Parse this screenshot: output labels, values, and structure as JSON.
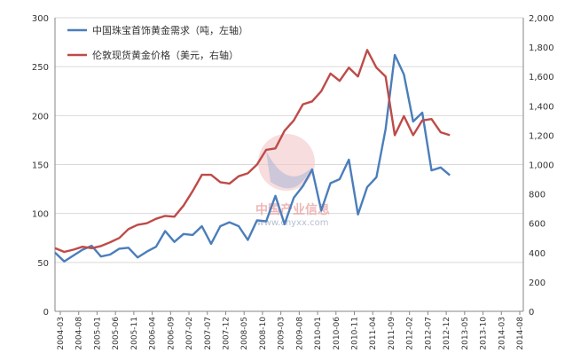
{
  "watermark": {
    "name": "中国产业信息",
    "url": "www.chyxx.com"
  },
  "chart_data": {
    "type": "line",
    "title": "",
    "legend_position": "top-left",
    "grid": true,
    "x": [
      "2004-03",
      "2004-06",
      "2004-08",
      "2004-12",
      "2005-01",
      "2005-03",
      "2005-06",
      "2005-09",
      "2005-11",
      "2006-01",
      "2006-04",
      "2006-06",
      "2006-09",
      "2006-12",
      "2007-02",
      "2007-05",
      "2007-07",
      "2007-10",
      "2007-12",
      "2008-02",
      "2008-05",
      "2008-07",
      "2008-10",
      "2008-12",
      "2009-03",
      "2009-05",
      "2009-08",
      "2009-10",
      "2010-01",
      "2010-03",
      "2010-06",
      "2010-08",
      "2010-11",
      "2011-01",
      "2011-04",
      "2011-06",
      "2011-09",
      "2011-11",
      "2012-02",
      "2012-04",
      "2012-07",
      "2012-09",
      "2012-12",
      "2013-02",
      "2013-05",
      "2013-07",
      "2013-10",
      "2013-12",
      "2014-03",
      "2014-05",
      "2014-08",
      "2014-10"
    ],
    "xticks": [
      "2004-03",
      "2004-08",
      "2005-01",
      "2005-06",
      "2005-11",
      "2006-04",
      "2006-09",
      "2007-02",
      "2007-07",
      "2007-12",
      "2008-05",
      "2008-10",
      "2009-03",
      "2009-08",
      "2010-01",
      "2010-06",
      "2010-11",
      "2011-04",
      "2011-09",
      "2012-02",
      "2012-07",
      "2012-12",
      "2013-05",
      "2013-10",
      "2014-03",
      "2014-08"
    ],
    "left_axis": {
      "ylim": [
        0,
        300
      ],
      "ticks": [
        "0",
        "50",
        "100",
        "150",
        "200",
        "250",
        "300"
      ]
    },
    "right_axis": {
      "ylim": [
        0,
        2000
      ],
      "ticks": [
        "0",
        "200",
        "400",
        "600",
        "800",
        "1,000",
        "1,200",
        "1,400",
        "1,600",
        "1,800",
        "2,000"
      ]
    },
    "series": [
      {
        "name": "中国珠宝首饰黄金需求（吨，左轴）",
        "axis": "left",
        "color": "#4a7ebb",
        "values": [
          60,
          51,
          57,
          63,
          67,
          56,
          58,
          64,
          65,
          55,
          61,
          66,
          82,
          71,
          79,
          78,
          87,
          69,
          87,
          91,
          87,
          73,
          93,
          92,
          118,
          89,
          116,
          128,
          145,
          103,
          131,
          135,
          155,
          99,
          127,
          137,
          186,
          262,
          242,
          194,
          203,
          144,
          147,
          139,
          null,
          null,
          null,
          null,
          null,
          null,
          null,
          null
        ]
      },
      {
        "name": "伦敦现货黄金价格（美元，右轴）",
        "axis": "right",
        "color": "#be4b48",
        "values": [
          430,
          405,
          420,
          440,
          430,
          445,
          470,
          500,
          560,
          590,
          600,
          630,
          650,
          645,
          720,
          820,
          930,
          930,
          880,
          870,
          920,
          940,
          1000,
          1100,
          1110,
          1230,
          1300,
          1410,
          1430,
          1500,
          1620,
          1570,
          1660,
          1600,
          1780,
          1660,
          1600,
          1200,
          1330,
          1200,
          1300,
          1310,
          1220,
          1200,
          null,
          null,
          null,
          null,
          null,
          null,
          null,
          null
        ]
      }
    ]
  }
}
